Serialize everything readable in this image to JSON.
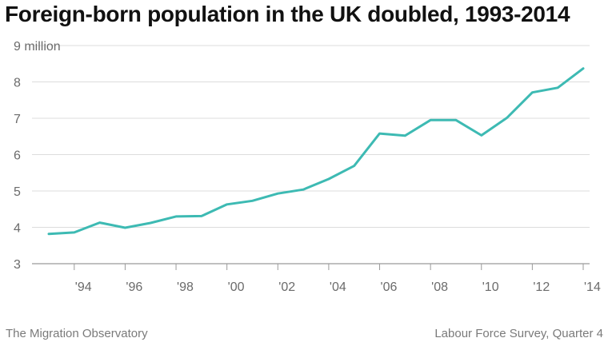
{
  "title": "Foreign-born population in the UK doubled, 1993-2014",
  "footer": {
    "left": "The Migration Observatory",
    "right": "Labour Force Survey, Quarter 4"
  },
  "chart_data": {
    "type": "line",
    "title": "Foreign-born population in the UK doubled, 1993-2014",
    "xlabel": "",
    "ylabel": "",
    "x": [
      1993,
      1994,
      1995,
      1996,
      1997,
      1998,
      1999,
      2000,
      2001,
      2002,
      2003,
      2004,
      2005,
      2006,
      2007,
      2008,
      2009,
      2010,
      2011,
      2012,
      2013,
      2014
    ],
    "series": [
      {
        "values": [
          3.82,
          3.86,
          4.13,
          3.99,
          4.12,
          4.3,
          4.31,
          4.63,
          4.73,
          4.93,
          5.04,
          5.33,
          5.69,
          6.58,
          6.52,
          6.95,
          6.95,
          6.53,
          7.01,
          7.71,
          7.84,
          8.37
        ]
      }
    ],
    "xlim": [
      1993,
      2014
    ],
    "ylim": [
      3,
      9
    ],
    "yticks": [
      3,
      4,
      5,
      6,
      7,
      8,
      9
    ],
    "ytick_labels": [
      "3",
      "4",
      "5",
      "6",
      "7",
      "8",
      "9 million"
    ],
    "xticks": [
      1994,
      1996,
      1998,
      2000,
      2002,
      2004,
      2006,
      2008,
      2010,
      2012,
      2014
    ],
    "xtick_labels": [
      "'94",
      "'96",
      "'98",
      "'00",
      "'02",
      "'04",
      "'06",
      "'08",
      "'10",
      "'12",
      "'14"
    ],
    "grid": true,
    "line_color": "#3dbab3"
  }
}
